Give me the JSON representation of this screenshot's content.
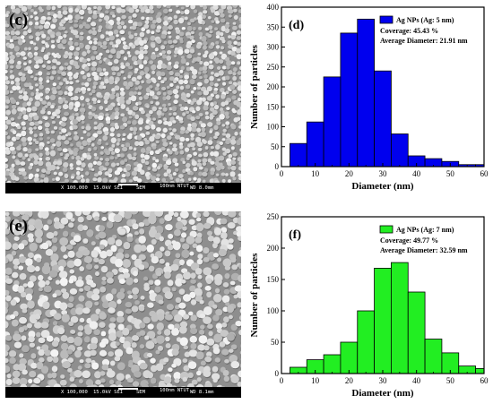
{
  "panels": [
    {
      "label": "(c)",
      "info_bar": {
        "mag": "X 100,000",
        "kv": "15.0kV SEI",
        "det": "SEM",
        "scale": "100nm NTUT",
        "wd": "WD 8.0mm"
      },
      "particle_style": "small"
    },
    {
      "label": "(e)",
      "info_bar": {
        "mag": "X 100,000",
        "kv": "15.0kV SEI",
        "det": "SEM",
        "scale": "100nm NTUT",
        "wd": "WD 8.1mm"
      },
      "particle_style": "large"
    }
  ],
  "chart_data": [
    {
      "type": "bar",
      "panel_label": "(d)",
      "legend": "Ag NPs (Ag: 5 nm)",
      "annotations": [
        "Coverage: 45.43 %",
        "Average Diameter: 21.91 nm"
      ],
      "xlabel": "Diameter (nm)",
      "ylabel": "Number of particles",
      "xlim": [
        0,
        60
      ],
      "ylim": [
        0,
        400
      ],
      "xticks": [
        0,
        10,
        20,
        30,
        40,
        50,
        60
      ],
      "yticks": [
        0,
        50,
        100,
        150,
        200,
        250,
        300,
        350,
        400
      ],
      "x": [
        5,
        10,
        15,
        20,
        25,
        30,
        35,
        40,
        45,
        50,
        55,
        60
      ],
      "values": [
        58,
        112,
        225,
        335,
        370,
        240,
        82,
        27,
        20,
        13,
        5,
        5
      ],
      "bar_width": 5,
      "color": "#0000ee",
      "legend_position": "top-right",
      "grid": false
    },
    {
      "type": "bar",
      "panel_label": "(f)",
      "legend": "Ag NPs (Ag: 7 nm)",
      "annotations": [
        "Coverage: 49.77 %",
        "Average Diameter: 32.59 nm"
      ],
      "xlabel": "Diameter (nm)",
      "ylabel": "Number of particles",
      "xlim": [
        0,
        60
      ],
      "ylim": [
        0,
        250
      ],
      "xticks": [
        0,
        10,
        20,
        30,
        40,
        50,
        60
      ],
      "yticks": [
        0,
        50,
        100,
        150,
        200,
        250
      ],
      "x": [
        5,
        10,
        15,
        20,
        25,
        30,
        35,
        40,
        45,
        50,
        55,
        60
      ],
      "values": [
        10,
        22,
        30,
        50,
        100,
        168,
        177,
        130,
        55,
        33,
        12,
        8
      ],
      "bar_width": 5,
      "color": "#22ee22",
      "legend_position": "top-right",
      "grid": false
    }
  ]
}
